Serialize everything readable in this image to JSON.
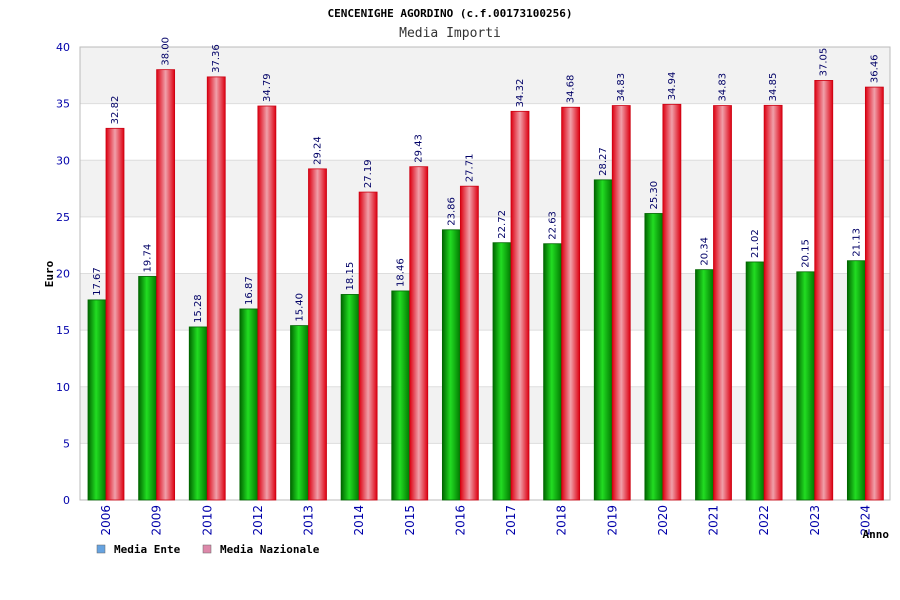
{
  "chart_data": {
    "type": "bar",
    "title": "CENCENIGHE AGORDINO (c.f.00173100256)",
    "subtitle": "Media Importi",
    "xlabel": "Anno",
    "ylabel": "Euro",
    "ylim": [
      0,
      40
    ],
    "yticks": [
      "0",
      "5",
      "10",
      "15",
      "20",
      "25",
      "30",
      "35",
      "40"
    ],
    "categories": [
      "2006",
      "2009",
      "2010",
      "2012",
      "2013",
      "2014",
      "2015",
      "2016",
      "2017",
      "2018",
      "2019",
      "2020",
      "2021",
      "2022",
      "2023",
      "2024"
    ],
    "series": [
      {
        "name": "Media Ente",
        "color": "#00aa00",
        "legend_color": "#66a3e0",
        "values": [
          17.67,
          19.74,
          15.28,
          16.87,
          15.4,
          18.15,
          18.46,
          23.86,
          22.72,
          22.63,
          28.27,
          25.3,
          20.34,
          21.02,
          20.15,
          21.13
        ],
        "labels": [
          "17.67",
          "19.74",
          "15.28",
          "16.87",
          "15.40",
          "18.15",
          "18.46",
          "23.86",
          "22.72",
          "22.63",
          "28.27",
          "25.30",
          "20.34",
          "21.02",
          "20.15",
          "21.13"
        ]
      },
      {
        "name": "Media Nazionale",
        "color": "#ee1122",
        "legend_color": "#dd88aa",
        "values": [
          32.82,
          38.0,
          37.36,
          34.79,
          29.24,
          27.19,
          29.43,
          27.71,
          34.32,
          34.68,
          34.83,
          34.94,
          34.83,
          34.85,
          37.05,
          36.46
        ],
        "labels": [
          "32.82",
          "38.00",
          "37.36",
          "34.79",
          "29.24",
          "27.19",
          "29.43",
          "27.71",
          "34.32",
          "34.68",
          "34.83",
          "34.94",
          "34.83",
          "34.85",
          "37.05",
          "36.46"
        ]
      }
    ],
    "grid": true,
    "legend_position": "bottom-left"
  }
}
